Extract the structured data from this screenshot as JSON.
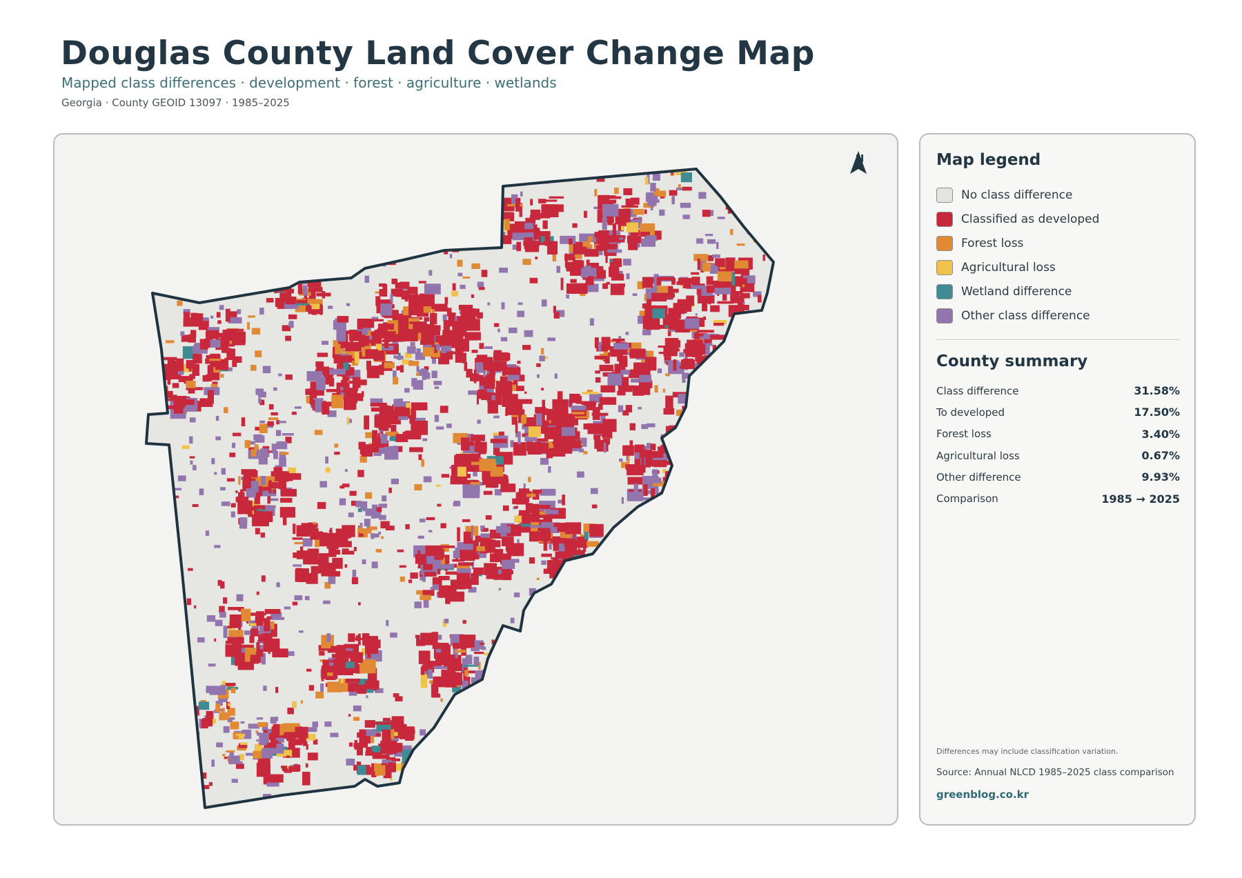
{
  "header": {
    "title": "Douglas County Land Cover Change Map",
    "subtitle": "Mapped class differences · development · forest · agriculture · wetlands",
    "meta": "Georgia · County GEOID 13097 · 1985–2025"
  },
  "map": {
    "north_label": "N",
    "icon": "north-arrow-icon",
    "colors": {
      "frame_bg": "#f3f3f1",
      "county_fill": "#e6e6e3",
      "county_outline": "#1f3440"
    }
  },
  "legend": {
    "title": "Map legend",
    "items": [
      {
        "label": "No class difference",
        "color": "#e3e3e0"
      },
      {
        "label": "Classified as developed",
        "color": "#c8283b"
      },
      {
        "label": "Forest loss",
        "color": "#e08a35"
      },
      {
        "label": "Agricultural loss",
        "color": "#f0c24b"
      },
      {
        "label": "Wetland difference",
        "color": "#3f8a93"
      },
      {
        "label": "Other class difference",
        "color": "#9275ad"
      }
    ]
  },
  "summary": {
    "title": "County summary",
    "rows": [
      {
        "label": "Class difference",
        "value": "31.58%"
      },
      {
        "label": "To developed",
        "value": "17.50%"
      },
      {
        "label": "Forest loss",
        "value": "3.40%"
      },
      {
        "label": "Agricultural loss",
        "value": "0.67%"
      },
      {
        "label": "Other difference",
        "value": "9.93%"
      },
      {
        "label": "Comparison",
        "value": "1985 → 2025"
      }
    ]
  },
  "footer": {
    "note": "Differences may include classification variation.",
    "source": "Source: Annual NLCD 1985–2025 class comparison",
    "site": "greenblog.co.kr"
  }
}
